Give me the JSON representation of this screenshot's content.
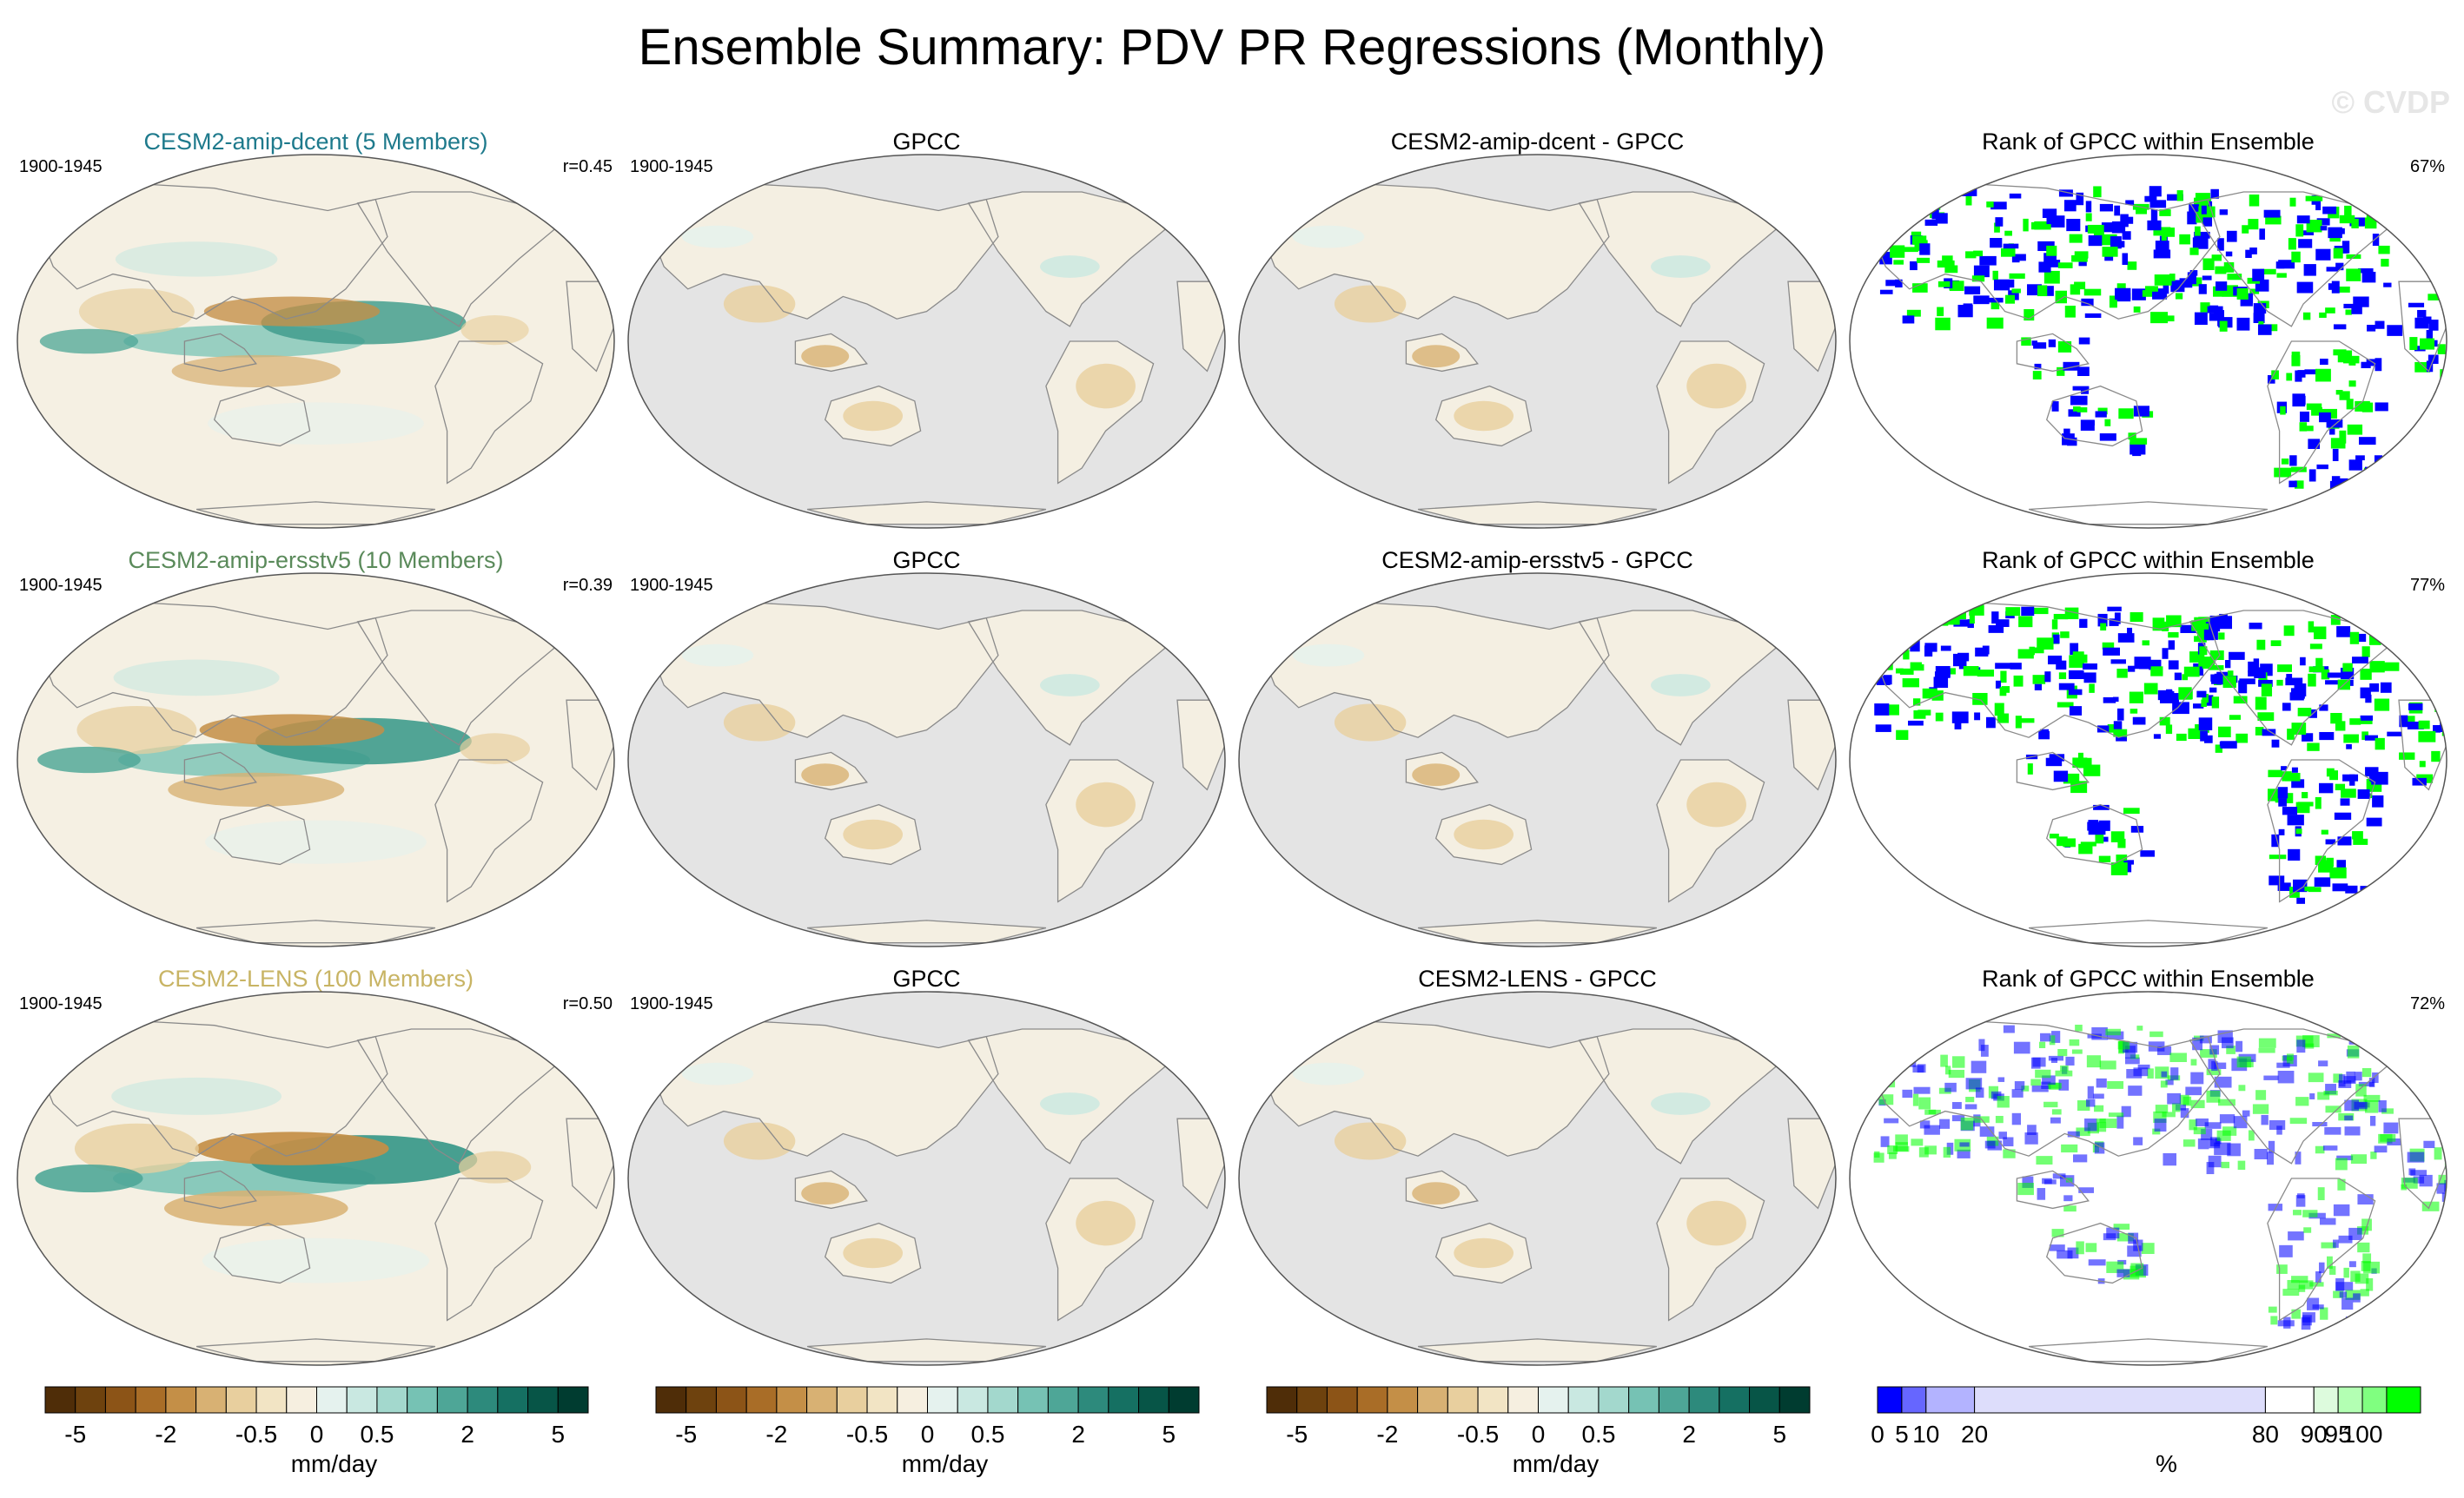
{
  "title": "Ensemble Summary: PDV PR Regressions (Monthly)",
  "watermark": "© CVDP",
  "colors": {
    "ocean_gray": "#e4e4e4",
    "neutral": "#f5f0e3",
    "dcent_title": "#1e7a8c",
    "ersstv5_title": "#5a8a5a",
    "lens_title": "#c8b464",
    "rank_blue": "#0000ff",
    "rank_green": "#00ff00"
  },
  "chart_data": [
    {
      "type": "heatmap",
      "rows": [
        {
          "period": "1900-1945",
          "panels": [
            {
              "kind": "model",
              "title": "CESM2-amip-dcent (5 Members)",
              "period": "1900-1945",
              "stat": "r=0.45",
              "title_color": "#1e7a8c",
              "amp": 0.7
            },
            {
              "kind": "obs",
              "title": "GPCC",
              "period": "1900-1945",
              "stat": ""
            },
            {
              "kind": "diff",
              "title": "CESM2-amip-dcent - GPCC",
              "period": "",
              "stat": ""
            },
            {
              "kind": "rank",
              "title": "Rank of GPCC within Ensemble",
              "period": "",
              "stat": "67%"
            }
          ]
        },
        {
          "period": "1900-1945",
          "panels": [
            {
              "kind": "model",
              "title": "CESM2-amip-ersstv5 (10 Members)",
              "period": "1900-1945",
              "stat": "r=0.39",
              "title_color": "#5a8a5a",
              "amp": 0.85
            },
            {
              "kind": "obs",
              "title": "GPCC",
              "period": "1900-1945",
              "stat": ""
            },
            {
              "kind": "diff",
              "title": "CESM2-amip-ersstv5 - GPCC",
              "period": "",
              "stat": ""
            },
            {
              "kind": "rank",
              "title": "Rank of GPCC within Ensemble",
              "period": "",
              "stat": "77%"
            }
          ]
        },
        {
          "period": "1900-1945",
          "panels": [
            {
              "kind": "model",
              "title": "CESM2-LENS (100 Members)",
              "period": "1900-1945",
              "stat": "r=0.50",
              "title_color": "#c8b464",
              "amp": 1.0
            },
            {
              "kind": "obs",
              "title": "GPCC",
              "period": "1900-1945",
              "stat": ""
            },
            {
              "kind": "diff",
              "title": "CESM2-LENS - GPCC",
              "period": "",
              "stat": ""
            },
            {
              "kind": "rank",
              "title": "Rank of GPCC within Ensemble",
              "period": "",
              "stat": "72%"
            }
          ]
        }
      ],
      "colorbars": [
        {
          "label": "mm/day",
          "ticks": [
            "-5",
            "-2",
            "-0.5",
            "0",
            "0.5",
            "2",
            "5"
          ],
          "colors": [
            "#4f2d08",
            "#6e420e",
            "#8c5417",
            "#a96d27",
            "#c48f47",
            "#d8b173",
            "#e8cf9e",
            "#f2e4c4",
            "#f6efe0",
            "#e5f2ee",
            "#c9e8e1",
            "#a3d8cd",
            "#76c2b4",
            "#4ea697",
            "#2d8a7c",
            "#157062",
            "#075547",
            "#003c30"
          ]
        },
        {
          "label": "mm/day",
          "ticks": [
            "-5",
            "-2",
            "-0.5",
            "0",
            "0.5",
            "2",
            "5"
          ],
          "colors": [
            "#4f2d08",
            "#6e420e",
            "#8c5417",
            "#a96d27",
            "#c48f47",
            "#d8b173",
            "#e8cf9e",
            "#f2e4c4",
            "#f6efe0",
            "#e5f2ee",
            "#c9e8e1",
            "#a3d8cd",
            "#76c2b4",
            "#4ea697",
            "#2d8a7c",
            "#157062",
            "#075547",
            "#003c30"
          ]
        },
        {
          "label": "mm/day",
          "ticks": [
            "-5",
            "-2",
            "-0.5",
            "0",
            "0.5",
            "2",
            "5"
          ],
          "colors": [
            "#4f2d08",
            "#6e420e",
            "#8c5417",
            "#a96d27",
            "#c48f47",
            "#d8b173",
            "#e8cf9e",
            "#f2e4c4",
            "#f6efe0",
            "#e5f2ee",
            "#c9e8e1",
            "#a3d8cd",
            "#76c2b4",
            "#4ea697",
            "#2d8a7c",
            "#157062",
            "#075547",
            "#003c30"
          ]
        },
        {
          "label": "%",
          "ticks": [
            "0",
            "5",
            "10",
            "20",
            "80",
            "90",
            "95",
            "100"
          ],
          "tick_values": [
            0,
            5,
            10,
            20,
            80,
            90,
            95,
            100
          ],
          "bins": [
            [
              0,
              5,
              "#0000ff"
            ],
            [
              5,
              10,
              "#6666ff"
            ],
            [
              10,
              20,
              "#b3b3ff"
            ],
            [
              20,
              80,
              "#ddddfb"
            ],
            [
              80,
              90,
              "#ffffff"
            ],
            [
              90,
              95,
              "#ddfbdd"
            ],
            [
              95,
              100,
              "#b3ffb3"
            ],
            [
              100,
              105,
              "#80ff80"
            ],
            [
              105,
              112,
              "#00ff00"
            ]
          ]
        }
      ]
    }
  ]
}
